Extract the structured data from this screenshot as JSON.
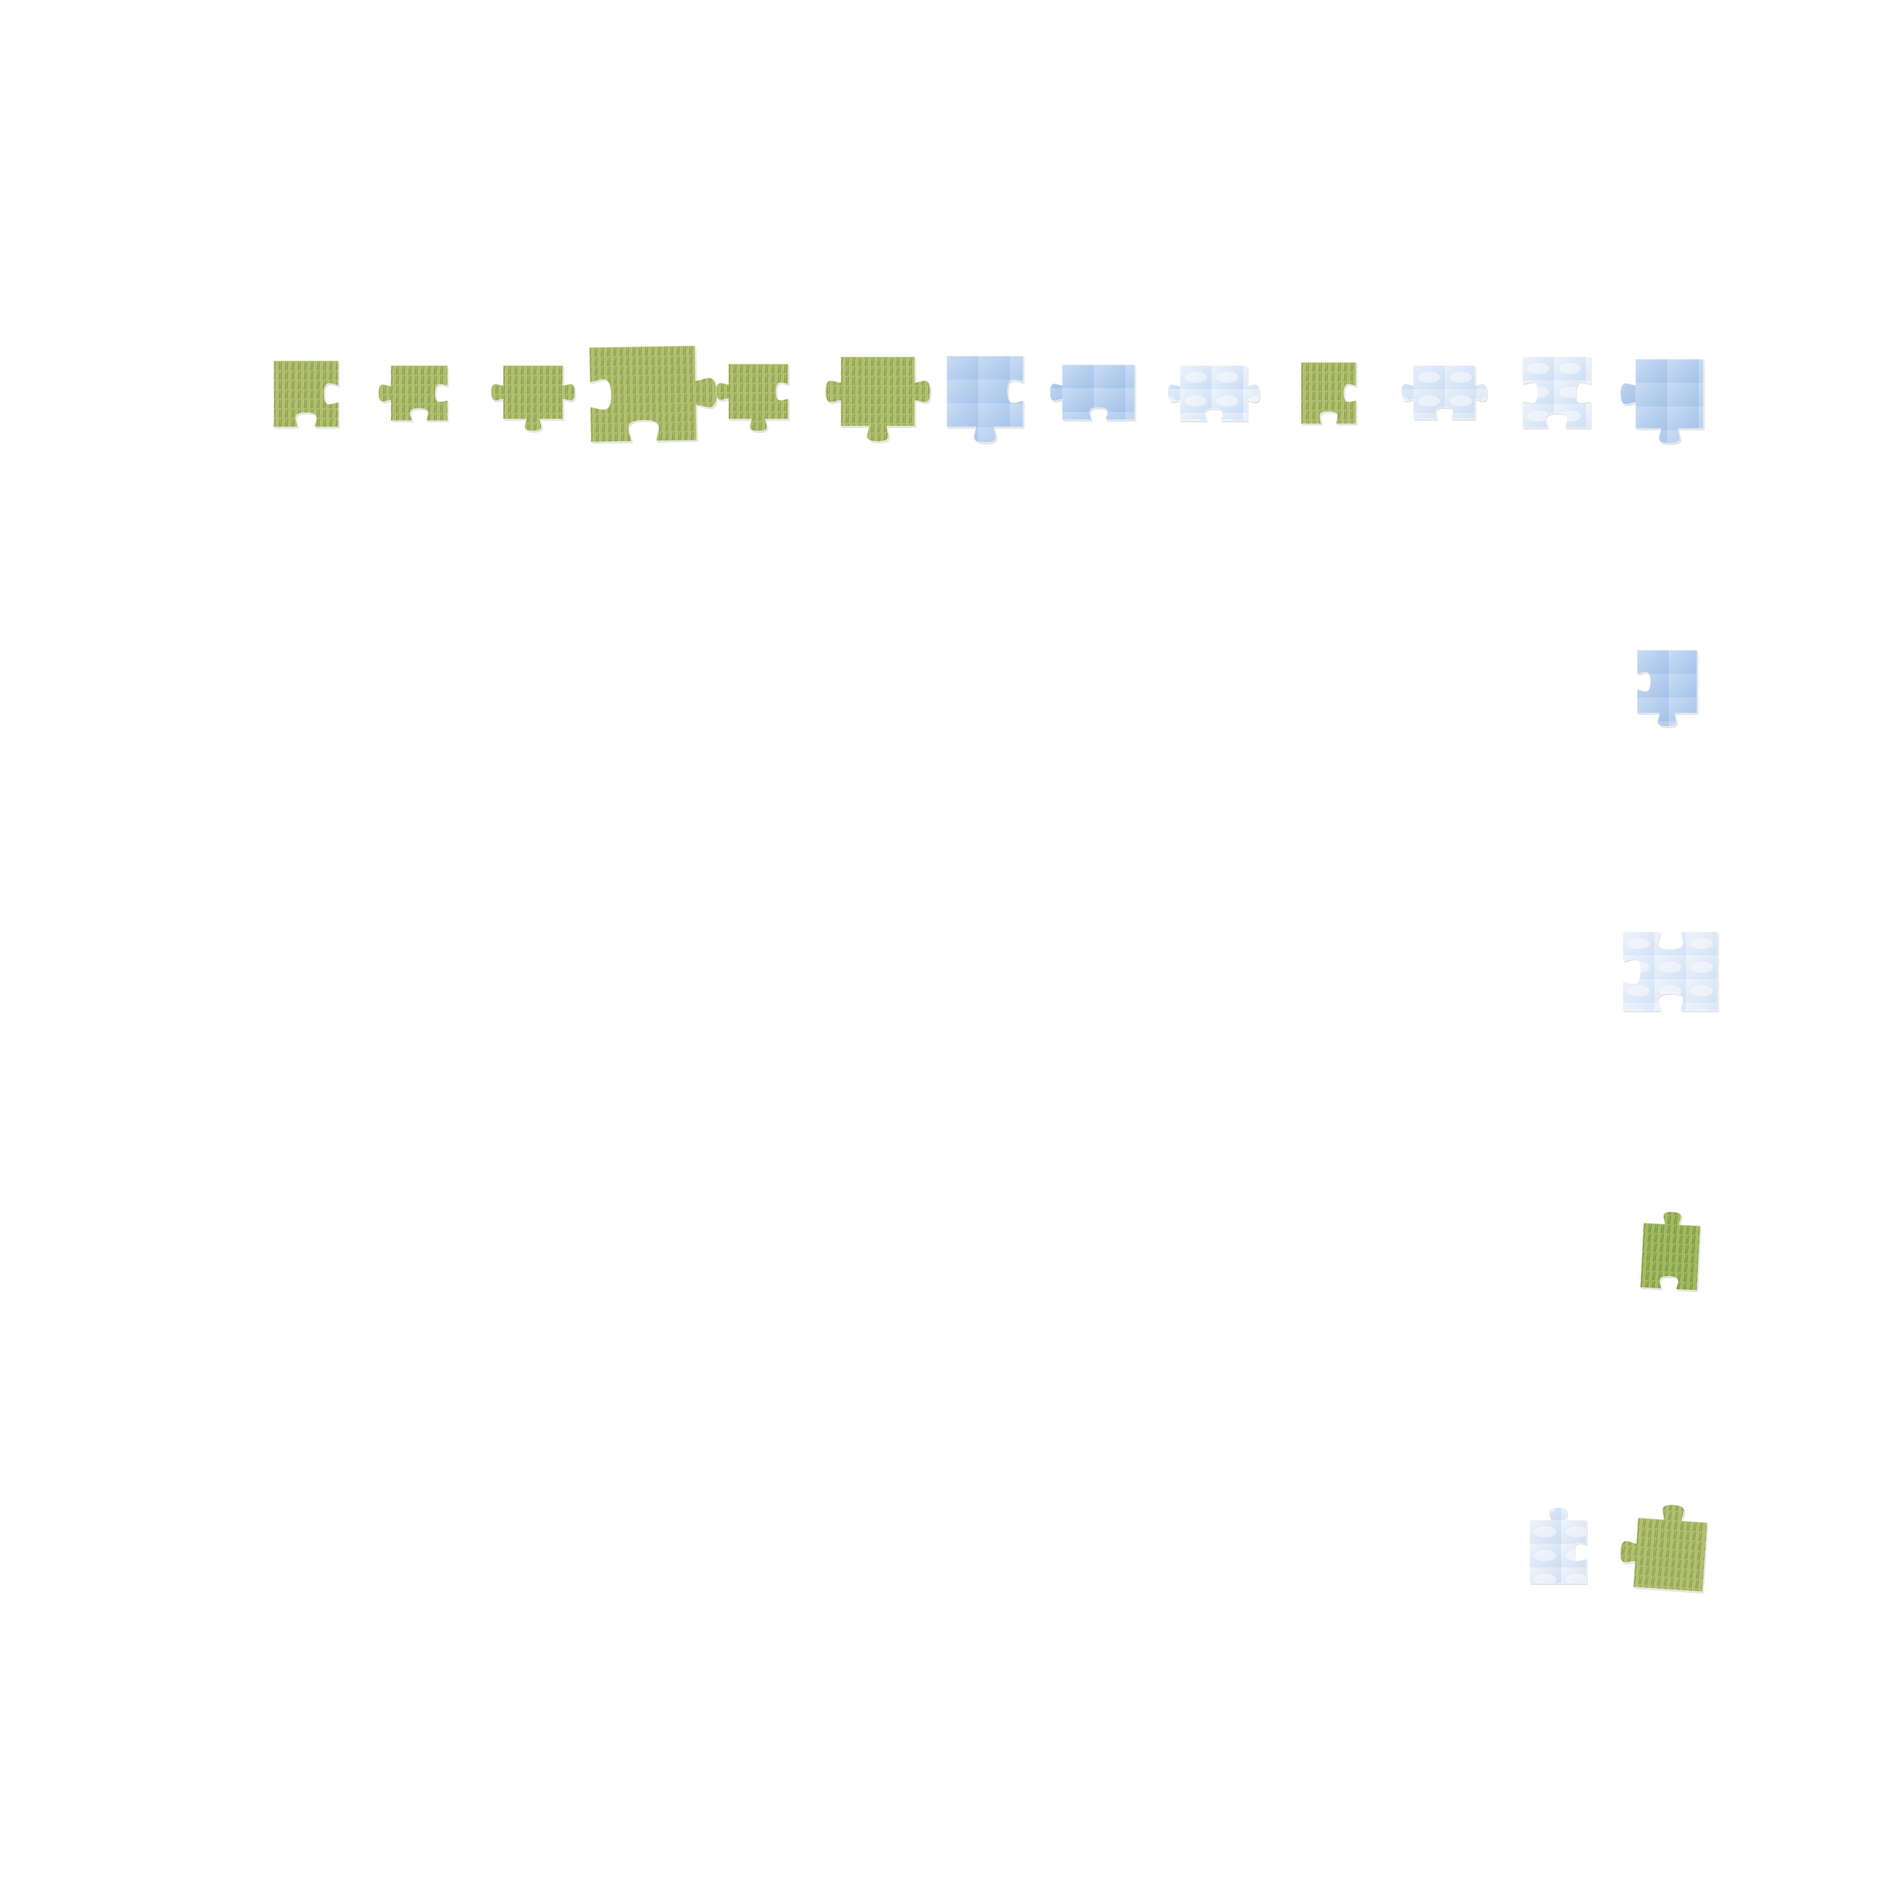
{
  "puzzle": {
    "background_color": "#ffffff",
    "piece_count": 19,
    "textures": {
      "grass": {
        "base": "#8a9e4a",
        "light": "#b4c270",
        "dark": "#5d7230"
      },
      "grass_dense": {
        "base": "#6f8f3a",
        "light": "#a6bd62",
        "dark": "#3f6a22"
      },
      "sky": {
        "base": "#7ea6de",
        "light": "#c9dcf4",
        "dark": "#6a93cf"
      },
      "sky_cloudy": {
        "base": "#a9c6ec",
        "light": "#eef4fb",
        "dark": "#8ab0e2"
      },
      "sky_grass": {
        "base": "#b8d0ee",
        "light": "#e8f0fa",
        "dark": "#3f7a2a"
      }
    }
  },
  "pieces": [
    {
      "name": "tray-piece-1",
      "texture": "grass"
    },
    {
      "name": "tray-piece-2",
      "texture": "grass"
    },
    {
      "name": "tray-piece-3",
      "texture": "grass"
    },
    {
      "name": "tray-piece-4",
      "texture": "grass"
    },
    {
      "name": "tray-piece-5",
      "texture": "grass"
    },
    {
      "name": "tray-piece-6",
      "texture": "grass"
    },
    {
      "name": "tray-piece-7",
      "texture": "sky"
    },
    {
      "name": "tray-piece-8",
      "texture": "sky"
    },
    {
      "name": "tray-piece-9",
      "texture": "sky_cloudy"
    },
    {
      "name": "tray-piece-10",
      "texture": "grass"
    },
    {
      "name": "tray-piece-11",
      "texture": "sky_grass"
    },
    {
      "name": "tray-piece-12",
      "texture": "sky_cloudy"
    },
    {
      "name": "tray-piece-13",
      "texture": "sky"
    },
    {
      "name": "tray-piece-14",
      "texture": "sky"
    },
    {
      "name": "tray-piece-15",
      "texture": "sky_cloudy"
    },
    {
      "name": "tray-piece-16",
      "texture": "grass_dense"
    },
    {
      "name": "tray-piece-17",
      "texture": "sky_cloudy"
    },
    {
      "name": "tray-piece-18",
      "texture": "grass"
    }
  ]
}
